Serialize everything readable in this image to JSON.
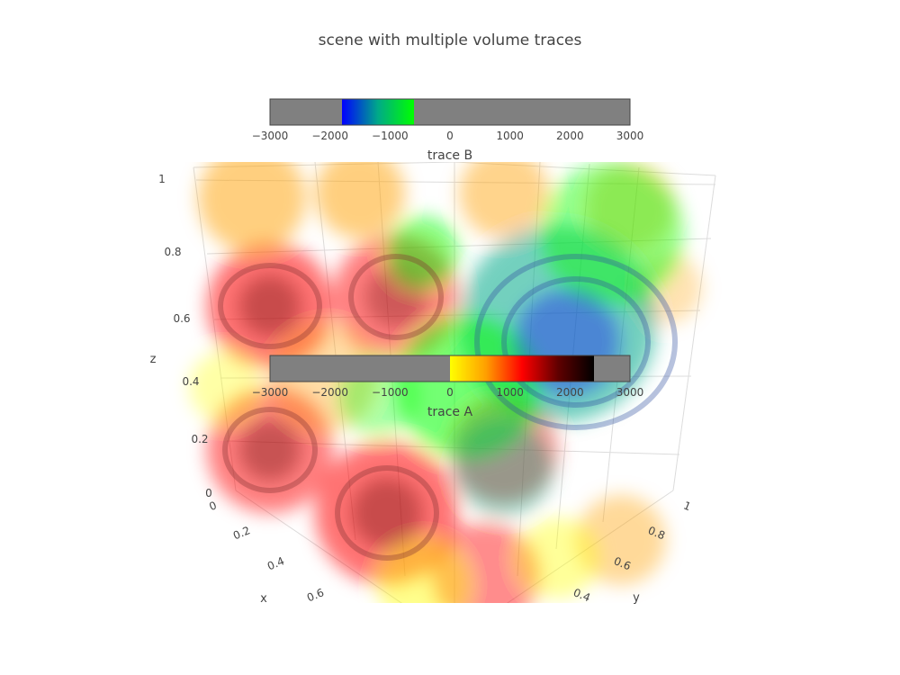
{
  "chart_data": {
    "type": "volume",
    "title": "scene with multiple volume traces",
    "axes": {
      "x": {
        "label": "x",
        "ticks": [
          "0",
          "0.2",
          "0.4",
          "0.6"
        ],
        "range": [
          0,
          1
        ]
      },
      "y": {
        "label": "y",
        "ticks": [
          "0.4",
          "0.6",
          "0.8",
          "1"
        ],
        "range": [
          0,
          1
        ]
      },
      "z": {
        "label": "z",
        "ticks": [
          "0",
          "0.2",
          "0.4",
          "0.6",
          "0.8",
          "1"
        ],
        "range": [
          0,
          1
        ]
      }
    },
    "series": [
      {
        "name": "trace A",
        "colorscale": "hot_reversed",
        "colorbar_ticks": [
          "−3000",
          "−2000",
          "−1000",
          "0",
          "1000",
          "2000",
          "3000"
        ],
        "cmin": -3000,
        "cmax": 3000,
        "value_range": [
          0,
          2400
        ],
        "colors": [
          "#ffff00",
          "#ff9f00",
          "#ff0000",
          "#600000",
          "#000000"
        ],
        "nan_color": "#808080"
      },
      {
        "name": "trace B",
        "colorscale": "blue_green",
        "colorbar_ticks": [
          "−3000",
          "−2000",
          "−1000",
          "0",
          "1000",
          "2000",
          "3000"
        ],
        "cmin": -3000,
        "cmax": 3000,
        "value_range": [
          -1800,
          -600
        ],
        "colors": [
          "#0000ff",
          "#00aa88",
          "#00ff00"
        ],
        "nan_color": "#808080"
      }
    ]
  }
}
